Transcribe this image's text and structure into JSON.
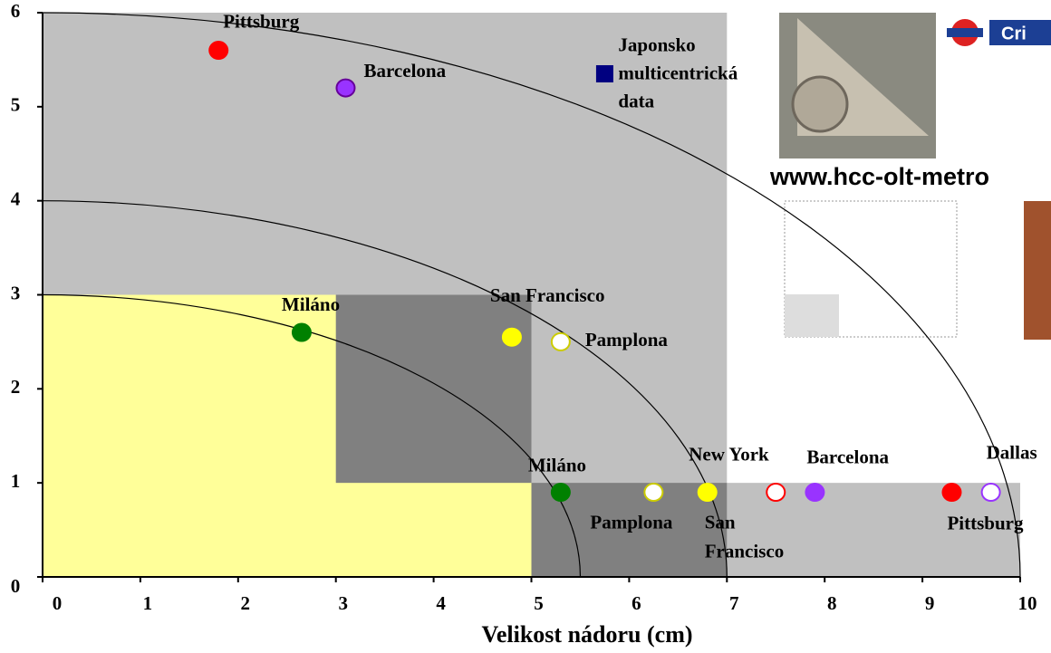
{
  "chart_data": {
    "type": "scatter",
    "x_label": "Velikost nádoru (cm)",
    "xlim": [
      0,
      10
    ],
    "ylim": [
      0,
      6
    ],
    "xticks": [
      0,
      1,
      2,
      3,
      4,
      5,
      6,
      7,
      8,
      9,
      10
    ],
    "yticks": [
      0,
      1,
      2,
      3,
      4,
      5,
      6
    ],
    "regions": [
      {
        "x": [
          0,
          7
        ],
        "y": [
          0,
          6
        ],
        "color": "#c0c0c0"
      },
      {
        "x": [
          7,
          10
        ],
        "y": [
          0,
          1
        ],
        "color": "#c0c0c0"
      },
      {
        "x": [
          0,
          5
        ],
        "y": [
          0,
          3
        ],
        "color": "#ffff99"
      },
      {
        "x": [
          3,
          5
        ],
        "y": [
          1,
          3
        ],
        "color": "#808080"
      },
      {
        "x": [
          5,
          7
        ],
        "y": [
          0,
          1
        ],
        "color": "#808080"
      }
    ],
    "curves": [
      {
        "rx": 10,
        "ry": 6
      },
      {
        "rx": 7,
        "ry": 4
      },
      {
        "rx": 5.5,
        "ry": 3
      }
    ],
    "points": [
      {
        "label": [
          "Pittsburg"
        ],
        "x": 1.8,
        "y": 5.6,
        "fill": "#ff0000",
        "stroke": "#ff0000",
        "marker": "circle"
      },
      {
        "label": [
          "Barcelona"
        ],
        "x": 3.1,
        "y": 5.2,
        "fill": "#9933ff",
        "stroke": "#660099",
        "marker": "circle"
      },
      {
        "label": [
          "Japonsko",
          "multicentrická",
          "data"
        ],
        "x": 5.75,
        "y": 5.35,
        "fill": "#000080",
        "stroke": "#000080",
        "marker": "square"
      },
      {
        "label": [
          "Miláno"
        ],
        "x": 2.65,
        "y": 2.6,
        "fill": "#008000",
        "stroke": "#008000",
        "marker": "circle"
      },
      {
        "label": [
          "San Francisco"
        ],
        "x": 4.8,
        "y": 2.55,
        "fill": "#ffff00",
        "stroke": "#ffff00",
        "marker": "circle"
      },
      {
        "label": [
          "Pamplona"
        ],
        "x": 5.3,
        "y": 2.5,
        "fill": "#ffffff",
        "stroke": "#cccc00",
        "marker": "circle"
      },
      {
        "label": [
          "Miláno"
        ],
        "x": 5.3,
        "y": 0.9,
        "fill": "#008000",
        "stroke": "#008000",
        "marker": "circle"
      },
      {
        "label": [
          "Pamplona"
        ],
        "x": 6.25,
        "y": 0.9,
        "fill": "#ffffff",
        "stroke": "#cccc00",
        "marker": "circle"
      },
      {
        "label": [
          "San",
          "Francisco"
        ],
        "x": 6.8,
        "y": 0.9,
        "fill": "#ffff00",
        "stroke": "#ffff00",
        "marker": "circle"
      },
      {
        "label": [
          "New York"
        ],
        "x": 7.5,
        "y": 0.9,
        "fill": "#ffffff",
        "stroke": "#ff0000",
        "marker": "circle"
      },
      {
        "label": [
          "Barcelona"
        ],
        "x": 7.9,
        "y": 0.9,
        "fill": "#9933ff",
        "stroke": "#9933ff",
        "marker": "circle"
      },
      {
        "label": [
          "Pittsburg"
        ],
        "x": 9.3,
        "y": 0.9,
        "fill": "#ff0000",
        "stroke": "#ff0000",
        "marker": "circle"
      },
      {
        "label": [
          "Dallas"
        ],
        "x": 9.7,
        "y": 0.9,
        "fill": "#ffffff",
        "stroke": "#9933ff",
        "marker": "circle"
      }
    ],
    "banner": {
      "url": "www.hcc-olt-metro",
      "logo": "Cri"
    }
  }
}
